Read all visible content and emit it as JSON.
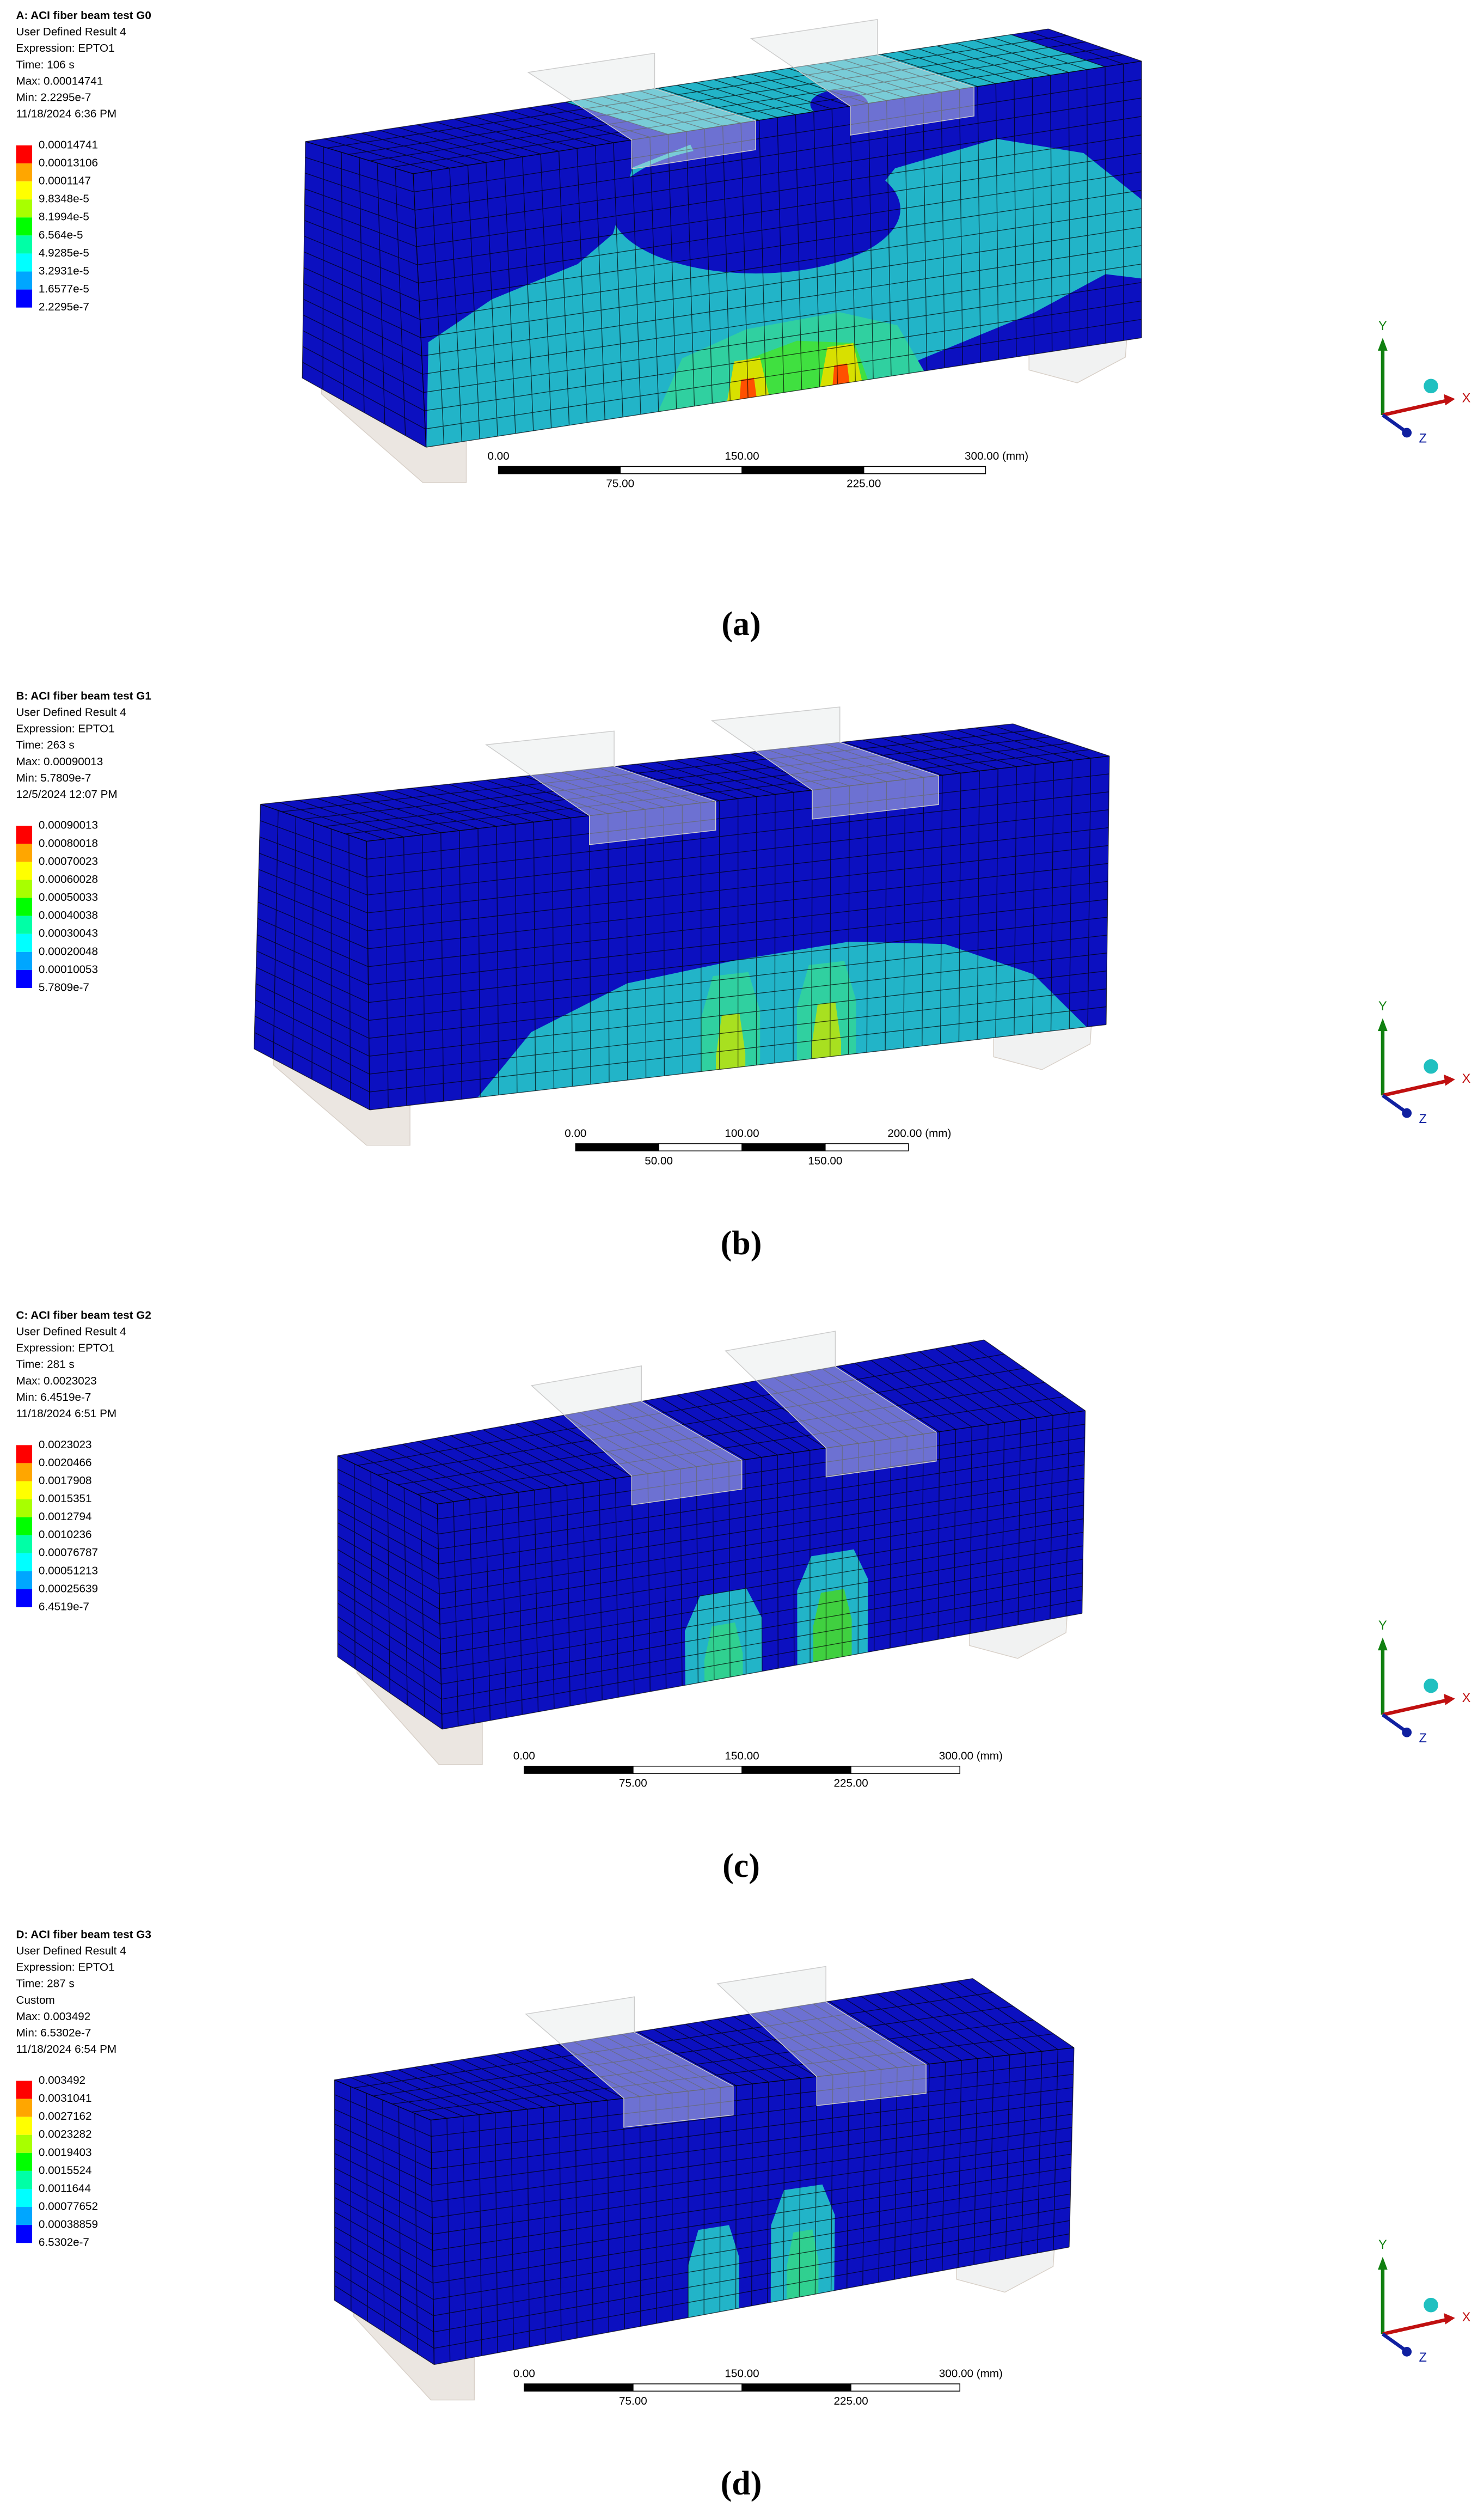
{
  "panels": [
    {
      "header": [
        "A: ACI fiber beam test G0",
        "User Defined Result 4",
        "Expression: EPTO1",
        "Time: 106 s",
        "Max: 0.00014741",
        "Min: 2.2295e-7",
        "11/18/2024 6:36 PM"
      ],
      "legend": [
        "0.00014741",
        "0.00013106",
        "0.0001147",
        "9.8348e-5",
        "8.1994e-5",
        "6.564e-5",
        "4.9285e-5",
        "3.2931e-5",
        "1.6577e-5",
        "2.2295e-7"
      ],
      "scale_top": [
        "0.00",
        "150.00",
        "300.00 (mm)"
      ],
      "scale_bottom": [
        "75.00",
        "225.00"
      ],
      "triad": [
        "Y",
        "X",
        "Z"
      ],
      "caption": "(a)"
    },
    {
      "header": [
        "B: ACI fiber beam test G1",
        "User Defined Result 4",
        "Expression: EPTO1",
        "Time: 263 s",
        "Max: 0.00090013",
        "Min: 5.7809e-7",
        "12/5/2024 12:07 PM"
      ],
      "legend": [
        "0.00090013",
        "0.00080018",
        "0.00070023",
        "0.00060028",
        "0.00050033",
        "0.00040038",
        "0.00030043",
        "0.00020048",
        "0.00010053",
        "5.7809e-7"
      ],
      "scale_top": [
        "0.00",
        "100.00",
        "200.00 (mm)"
      ],
      "scale_bottom": [
        "50.00",
        "150.00"
      ],
      "triad": [
        "Y",
        "X",
        "Z"
      ],
      "caption": "(b)"
    },
    {
      "header": [
        "C: ACI fiber beam test G2",
        "User Defined Result 4",
        "Expression: EPTO1",
        "Time: 281 s",
        "Max: 0.0023023",
        "Min: 6.4519e-7",
        "11/18/2024 6:51 PM"
      ],
      "legend": [
        "0.0023023",
        "0.0020466",
        "0.0017908",
        "0.0015351",
        "0.0012794",
        "0.0010236",
        "0.00076787",
        "0.00051213",
        "0.00025639",
        "6.4519e-7"
      ],
      "scale_top": [
        "0.00",
        "150.00",
        "300.00 (mm)"
      ],
      "scale_bottom": [
        "75.00",
        "225.00"
      ],
      "triad": [
        "Y",
        "X",
        "Z"
      ],
      "caption": "(c)"
    },
    {
      "header": [
        "D: ACI fiber beam test G3",
        "User Defined Result 4",
        "Expression: EPTO1",
        "Time: 287 s",
        "Custom",
        "Max: 0.003492",
        "Min: 6.5302e-7",
        "11/18/2024 6:54 PM"
      ],
      "legend": [
        "0.003492",
        "0.0031041",
        "0.0027162",
        "0.0023282",
        "0.0019403",
        "0.0015524",
        "0.0011644",
        "0.00077652",
        "0.00038859",
        "6.5302e-7"
      ],
      "scale_top": [
        "0.00",
        "150.00",
        "300.00 (mm)"
      ],
      "scale_bottom": [
        "75.00",
        "225.00"
      ],
      "triad": [
        "Y",
        "X",
        "Z"
      ],
      "caption": "(d)"
    }
  ]
}
